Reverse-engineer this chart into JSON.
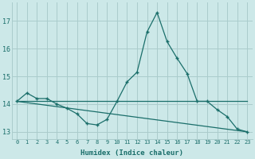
{
  "xlabel": "Humidex (Indice chaleur)",
  "background_color": "#cce8e8",
  "grid_color": "#aacccc",
  "line_color": "#1a6e6a",
  "x_min": -0.5,
  "x_max": 23.5,
  "y_min": 12.75,
  "y_max": 17.65,
  "yticks": [
    13,
    14,
    15,
    16,
    17
  ],
  "xticks": [
    0,
    1,
    2,
    3,
    4,
    5,
    6,
    7,
    8,
    9,
    10,
    11,
    12,
    13,
    14,
    15,
    16,
    17,
    18,
    19,
    20,
    21,
    22,
    23
  ],
  "line1_x": [
    0,
    1,
    2,
    3,
    4,
    5,
    6,
    7,
    8,
    9,
    10,
    11,
    12,
    13,
    14,
    15,
    16,
    17,
    18,
    19,
    20,
    21,
    22,
    23
  ],
  "line1_y": [
    14.1,
    14.4,
    14.2,
    14.2,
    14.0,
    13.85,
    13.65,
    13.3,
    13.25,
    13.45,
    14.1,
    14.8,
    15.15,
    16.6,
    17.3,
    16.25,
    15.65,
    15.1,
    14.1,
    14.1,
    13.8,
    13.55,
    13.1,
    13.0
  ],
  "line2_x": [
    0,
    23
  ],
  "line2_y": [
    14.1,
    14.1
  ],
  "line3_x": [
    0,
    23
  ],
  "line3_y": [
    14.1,
    13.0
  ]
}
